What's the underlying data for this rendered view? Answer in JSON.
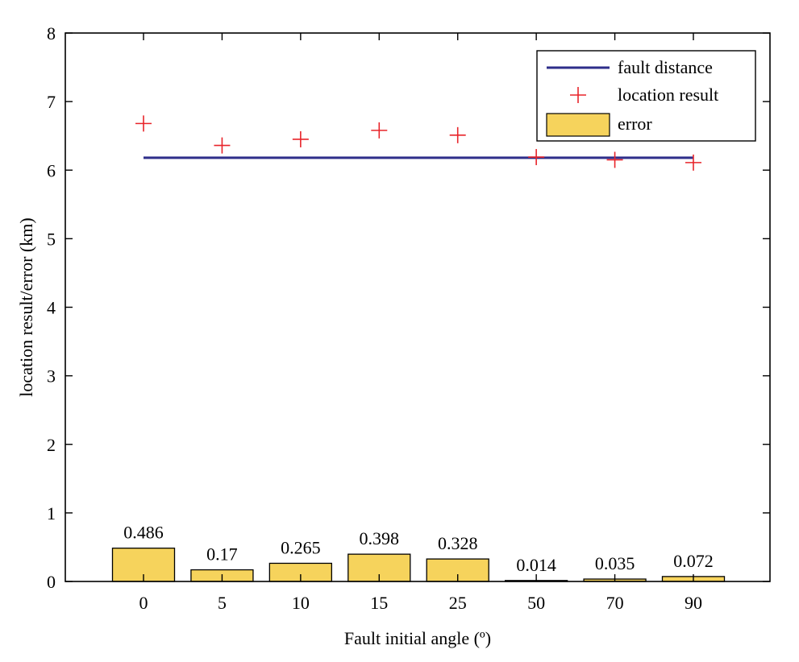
{
  "chart_data": {
    "type": "bar",
    "categories": [
      "0",
      "5",
      "10",
      "15",
      "25",
      "50",
      "70",
      "90"
    ],
    "xlabel": "Fault initial angle (º)",
    "ylabel": "location result/error (km)",
    "ylim": [
      0,
      8
    ],
    "yticks": [
      "0",
      "1",
      "2",
      "3",
      "4",
      "5",
      "6",
      "7",
      "8"
    ],
    "grid": false,
    "legend_position": "top-right",
    "series": [
      {
        "name": "fault distance",
        "kind": "line",
        "color": "#2e2e8a",
        "values": [
          6.18,
          6.18,
          6.18,
          6.18,
          6.18,
          6.18,
          6.18,
          6.18
        ]
      },
      {
        "name": "location result",
        "kind": "marker",
        "marker": "+",
        "color": "#e8242a",
        "values": [
          6.68,
          6.36,
          6.45,
          6.58,
          6.51,
          6.19,
          6.15,
          6.11
        ]
      },
      {
        "name": "error",
        "kind": "bar",
        "color": "#f6d35c",
        "values": [
          0.486,
          0.17,
          0.265,
          0.398,
          0.328,
          0.014,
          0.035,
          0.072
        ],
        "labels": [
          "0.486",
          "0.17",
          "0.265",
          "0.398",
          "0.328",
          "0.014",
          "0.035",
          "0.072"
        ]
      }
    ]
  }
}
